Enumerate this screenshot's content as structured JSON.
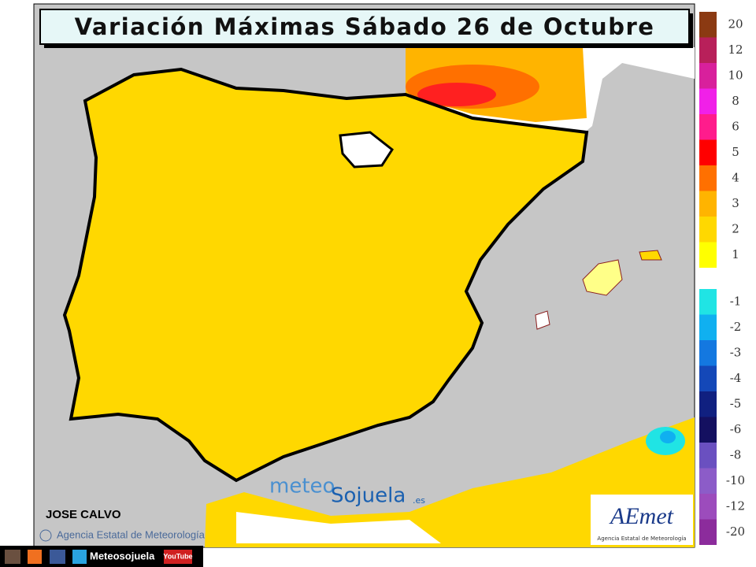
{
  "header": {
    "title": "Variación Máximas Sábado 26 de Octubre"
  },
  "legend": {
    "positive": [
      {
        "label": "20",
        "color": "#8b3a12"
      },
      {
        "label": "12",
        "color": "#b8205a"
      },
      {
        "label": "10",
        "color": "#d8209c"
      },
      {
        "label": "8",
        "color": "#f020e8"
      },
      {
        "label": "6",
        "color": "#ff1c8c"
      },
      {
        "label": "5",
        "color": "#ff0000"
      },
      {
        "label": "4",
        "color": "#ff7000"
      },
      {
        "label": "3",
        "color": "#ffb400"
      },
      {
        "label": "2",
        "color": "#ffd800"
      },
      {
        "label": "1",
        "color": "#ffff00"
      }
    ],
    "negative": [
      {
        "label": "-1",
        "color": "#20e4e4"
      },
      {
        "label": "-2",
        "color": "#10b0f0"
      },
      {
        "label": "-3",
        "color": "#1478e0"
      },
      {
        "label": "-4",
        "color": "#1448b8"
      },
      {
        "label": "-5",
        "color": "#102080"
      },
      {
        "label": "-6",
        "color": "#141060"
      },
      {
        "label": "-8",
        "color": "#6a50c0"
      },
      {
        "label": "-10",
        "color": "#8c5cc8"
      },
      {
        "label": "-12",
        "color": "#9c4cbc"
      },
      {
        "label": "-20",
        "color": "#8c2c9c"
      }
    ]
  },
  "credits": {
    "author": "JOSE CALVO",
    "copyright": "Agencia Estatal de Meteorología",
    "watermark": {
      "part1": "meteo",
      "part2": "Sojuela",
      "part3": ".es"
    },
    "logo": {
      "name": "AEmet",
      "subtitle": "Agencia Estatal de Meteorología"
    }
  },
  "footer": {
    "site": "Meteosojuela",
    "video": "YouTube"
  }
}
